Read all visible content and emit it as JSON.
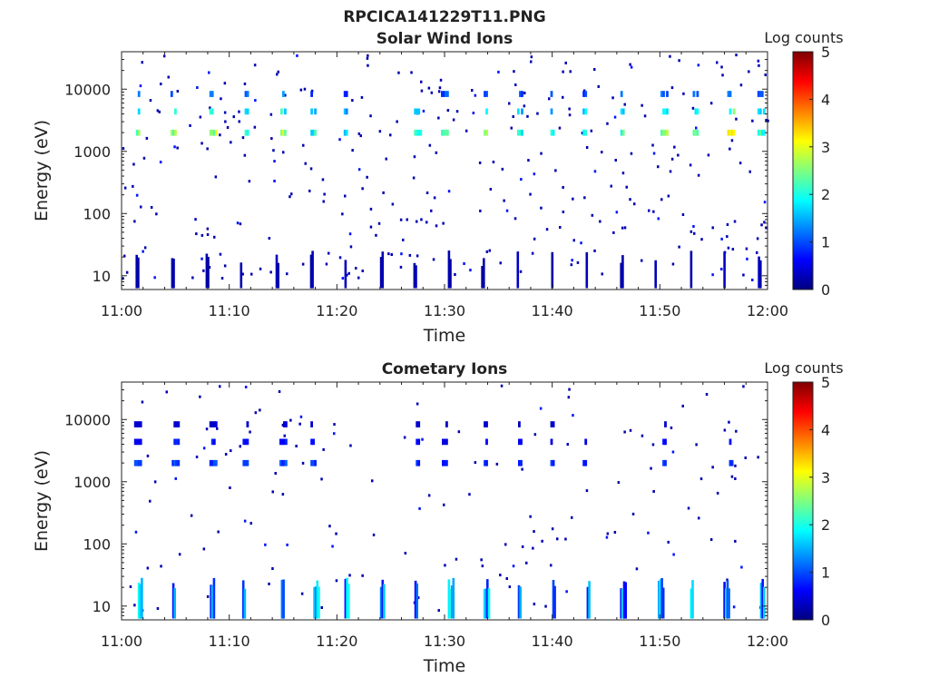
{
  "figure": {
    "supertitle": "RPCICA141229T11.PNG"
  },
  "colormap": {
    "name": "jet",
    "stops": [
      "#00007f",
      "#0000ff",
      "#007fff",
      "#00ffff",
      "#7fff7f",
      "#ffff00",
      "#ff7f00",
      "#ff0000",
      "#7f0000"
    ]
  },
  "chart_data": [
    {
      "type": "heatmap",
      "title": "Solar Wind Ions",
      "xlabel": "Time",
      "ylabel": "Energy (eV)",
      "yscale": "log",
      "xlim": [
        "11:00",
        "12:00"
      ],
      "ylim": [
        6,
        40000
      ],
      "x_ticks": [
        "11:00",
        "11:10",
        "11:20",
        "11:30",
        "11:40",
        "11:50",
        "12:00"
      ],
      "y_ticks": [
        "10",
        "100",
        "1000",
        "10000"
      ],
      "colorbar": {
        "label": "Log counts",
        "range": [
          0,
          5
        ],
        "ticks": [
          "0",
          "1",
          "2",
          "3",
          "4",
          "5"
        ]
      },
      "bursts": [
        {
          "minute": 1.5,
          "peak_energy_eV": 1990,
          "log_counts": 2.5
        },
        {
          "minute": 4.8,
          "peak_energy_eV": 1990,
          "log_counts": 2.6
        },
        {
          "minute": 8.5,
          "peak_energy_eV": 1990,
          "log_counts": 2.7
        },
        {
          "minute": 11.6,
          "peak_energy_eV": 1990,
          "log_counts": 2.4
        },
        {
          "minute": 15.0,
          "peak_energy_eV": 1990,
          "log_counts": 2.8
        },
        {
          "minute": 17.8,
          "peak_energy_eV": 1990,
          "log_counts": 2.0
        },
        {
          "minute": 20.8,
          "peak_energy_eV": 1990,
          "log_counts": 2.0
        },
        {
          "minute": 27.5,
          "peak_energy_eV": 1990,
          "log_counts": 2.4
        },
        {
          "minute": 30.0,
          "peak_energy_eV": 1990,
          "log_counts": 2.3
        },
        {
          "minute": 33.8,
          "peak_energy_eV": 1990,
          "log_counts": 2.6
        },
        {
          "minute": 37.0,
          "peak_energy_eV": 1990,
          "log_counts": 2.2
        },
        {
          "minute": 40.0,
          "peak_energy_eV": 1990,
          "log_counts": 2.3
        },
        {
          "minute": 43.0,
          "peak_energy_eV": 1990,
          "log_counts": 2.2
        },
        {
          "minute": 46.5,
          "peak_energy_eV": 1990,
          "log_counts": 2.4
        },
        {
          "minute": 50.4,
          "peak_energy_eV": 1990,
          "log_counts": 2.5
        },
        {
          "minute": 53.3,
          "peak_energy_eV": 1990,
          "log_counts": 2.5
        },
        {
          "minute": 56.6,
          "peak_energy_eV": 1990,
          "log_counts": 3.0
        },
        {
          "minute": 59.4,
          "peak_energy_eV": 1990,
          "log_counts": 2.4
        }
      ],
      "low_energy_spikes_minutes": [
        1.3,
        4.6,
        7.8,
        11.0,
        14.3,
        17.5,
        20.7,
        24.0,
        27.1,
        30.3,
        33.4,
        36.7,
        39.9,
        43.1,
        46.3,
        49.5,
        52.8,
        55.9,
        59.1
      ]
    },
    {
      "type": "heatmap",
      "title": "Cometary Ions",
      "xlabel": "Time",
      "ylabel": "Energy (eV)",
      "yscale": "log",
      "xlim": [
        "11:00",
        "12:00"
      ],
      "ylim": [
        6,
        40000
      ],
      "x_ticks": [
        "11:00",
        "11:10",
        "11:20",
        "11:30",
        "11:40",
        "11:50",
        "12:00"
      ],
      "y_ticks": [
        "10",
        "100",
        "1000",
        "10000"
      ],
      "colorbar": {
        "label": "Log counts",
        "range": [
          0,
          5
        ],
        "ticks": [
          "0",
          "1",
          "2",
          "3",
          "4",
          "5"
        ]
      },
      "bursts": [
        {
          "minute": 1.5,
          "peak_energy_eV": 1990,
          "log_counts": 0.9
        },
        {
          "minute": 5.0,
          "peak_energy_eV": 1990,
          "log_counts": 1.0
        },
        {
          "minute": 8.5,
          "peak_energy_eV": 1990,
          "log_counts": 1.0
        },
        {
          "minute": 11.5,
          "peak_energy_eV": 1990,
          "log_counts": 0.9
        },
        {
          "minute": 15.0,
          "peak_energy_eV": 1990,
          "log_counts": 1.0
        },
        {
          "minute": 17.8,
          "peak_energy_eV": 1990,
          "log_counts": 0.9
        },
        {
          "minute": 27.5,
          "peak_energy_eV": 1990,
          "log_counts": 0.9
        },
        {
          "minute": 30.0,
          "peak_energy_eV": 1990,
          "log_counts": 0.8
        },
        {
          "minute": 33.8,
          "peak_energy_eV": 1990,
          "log_counts": 0.9
        },
        {
          "minute": 37.0,
          "peak_energy_eV": 1990,
          "log_counts": 0.8
        },
        {
          "minute": 40.0,
          "peak_energy_eV": 1990,
          "log_counts": 0.8
        },
        {
          "minute": 43.0,
          "peak_energy_eV": 1990,
          "log_counts": 0.8
        },
        {
          "minute": 50.4,
          "peak_energy_eV": 1990,
          "log_counts": 0.9
        },
        {
          "minute": 56.6,
          "peak_energy_eV": 1990,
          "log_counts": 1.0
        }
      ],
      "low_energy_spikes_minutes": [
        1.5,
        4.7,
        8.2,
        11.2,
        14.8,
        17.8,
        20.7,
        24.0,
        27.2,
        30.3,
        33.6,
        36.8,
        40.0,
        43.2,
        46.3,
        49.8,
        52.8,
        55.9,
        59.3
      ]
    }
  ]
}
